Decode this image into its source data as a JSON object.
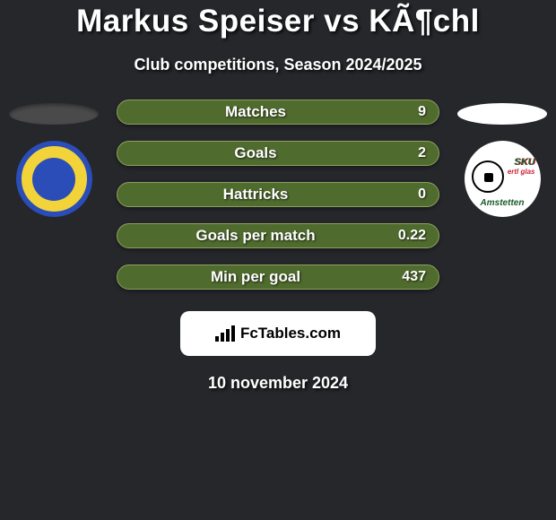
{
  "title": "Markus Speiser vs KÃ¶chl",
  "subtitle": "Club competitions, Season 2024/2025",
  "leftClub": {
    "name": "First Vienna Football Club 1894",
    "colors": {
      "primary": "#2a4db8",
      "secondary": "#f2d33a"
    },
    "ellipseColor": "#4a4a4a"
  },
  "rightClub": {
    "name": "SKU Amstetten",
    "text1": "SKU",
    "text2": "ertl glas",
    "text3": "Amstetten",
    "colors": {
      "primary": "#1a5c2e",
      "accent": "#c23"
    },
    "ellipseColor": "#ffffff"
  },
  "stats": [
    {
      "label": "Matches",
      "value": "9"
    },
    {
      "label": "Goals",
      "value": "2"
    },
    {
      "label": "Hattricks",
      "value": "0"
    },
    {
      "label": "Goals per match",
      "value": "0.22"
    },
    {
      "label": "Min per goal",
      "value": "437"
    }
  ],
  "statBar": {
    "background": "#506b2e",
    "border": "#8ea060",
    "height": 28,
    "radius": 14,
    "labelFontSize": 17,
    "valueFontSize": 16
  },
  "attribution": {
    "text": "FcTables.com"
  },
  "date": "10 november 2024",
  "theme": {
    "pageBackground": "#25272b",
    "textColor": "#ffffff",
    "titleFontSize": 35,
    "subtitleFontSize": 18,
    "dateFontSize": 18
  }
}
